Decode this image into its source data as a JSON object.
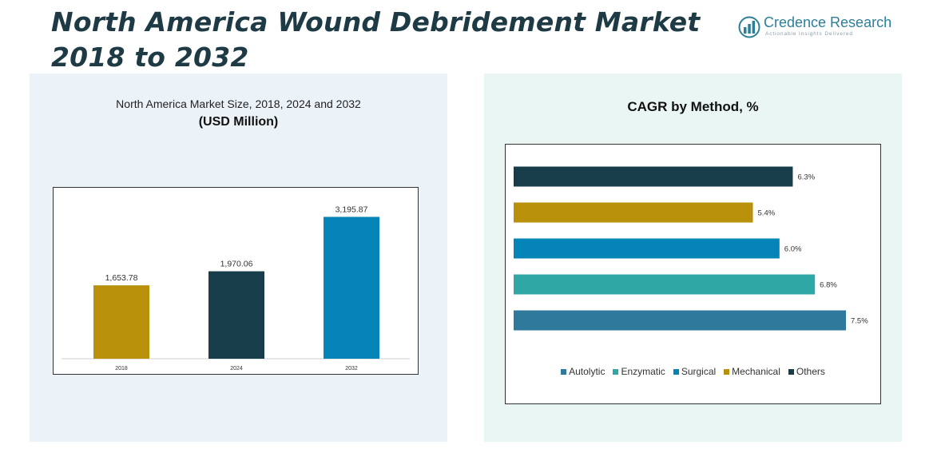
{
  "title": {
    "line1": "North America Wound Debridement Market",
    "line2": "2018 to 2032"
  },
  "logo": {
    "name": "Credence Research",
    "tagline": "Actionable Insights Delivered",
    "icon": "bar-chart-globe-icon",
    "color": "#2d7f97"
  },
  "chart_data": [
    {
      "type": "bar",
      "title": "North America Market Size, 2018, 2024 and 2032",
      "subtitle": "(USD Million)",
      "categories": [
        "2018",
        "2024",
        "2032"
      ],
      "values": [
        1653.78,
        1970.06,
        3195.87
      ],
      "value_labels": [
        "1,653.78",
        "1,970.06",
        "3,195.87"
      ],
      "colors": [
        "#b8900a",
        "#173d4b",
        "#0585b7"
      ],
      "ylim": [
        0,
        3600
      ],
      "grid": false
    },
    {
      "type": "bar",
      "orientation": "horizontal",
      "title": "CAGR by Method, %",
      "categories": [
        "Others",
        "Mechanical",
        "Surgical",
        "Enzymatic",
        "Autolytic"
      ],
      "values": [
        6.3,
        5.4,
        6.0,
        6.8,
        7.5
      ],
      "value_labels": [
        "6.3%",
        "5.4%",
        "6.0%",
        "6.8%",
        "7.5%"
      ],
      "colors": [
        "#173d4b",
        "#b8900a",
        "#0585b7",
        "#2ea7a5",
        "#2f7a9c"
      ],
      "xlim": [
        0,
        7.5
      ],
      "grid": false,
      "legend": {
        "position": "bottom",
        "entries": [
          "Autolytic",
          "Enzymatic",
          "Surgical",
          "Mechanical",
          "Others"
        ],
        "colors": [
          "#2f7a9c",
          "#2ea7a5",
          "#0585b7",
          "#b8900a",
          "#173d4b"
        ]
      }
    }
  ]
}
